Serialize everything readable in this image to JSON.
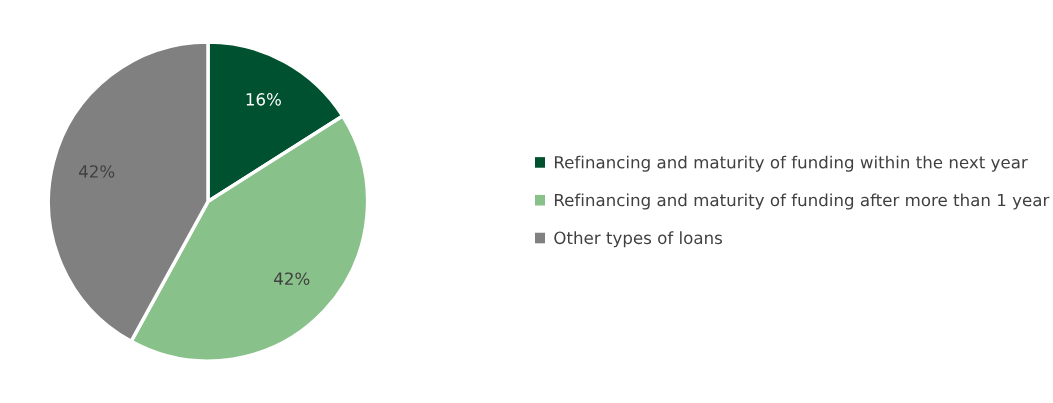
{
  "chart_data": {
    "type": "pie",
    "categories": [
      "Refinancing and maturity of funding within the next year",
      "Refinancing and maturity of funding after more than 1 year",
      "Other types of loans"
    ],
    "values": [
      16,
      42,
      42
    ],
    "value_labels": [
      "16%",
      "42%",
      "42%"
    ],
    "colors": [
      "#00512f",
      "#88c18a",
      "#808080"
    ],
    "legend": "right"
  }
}
